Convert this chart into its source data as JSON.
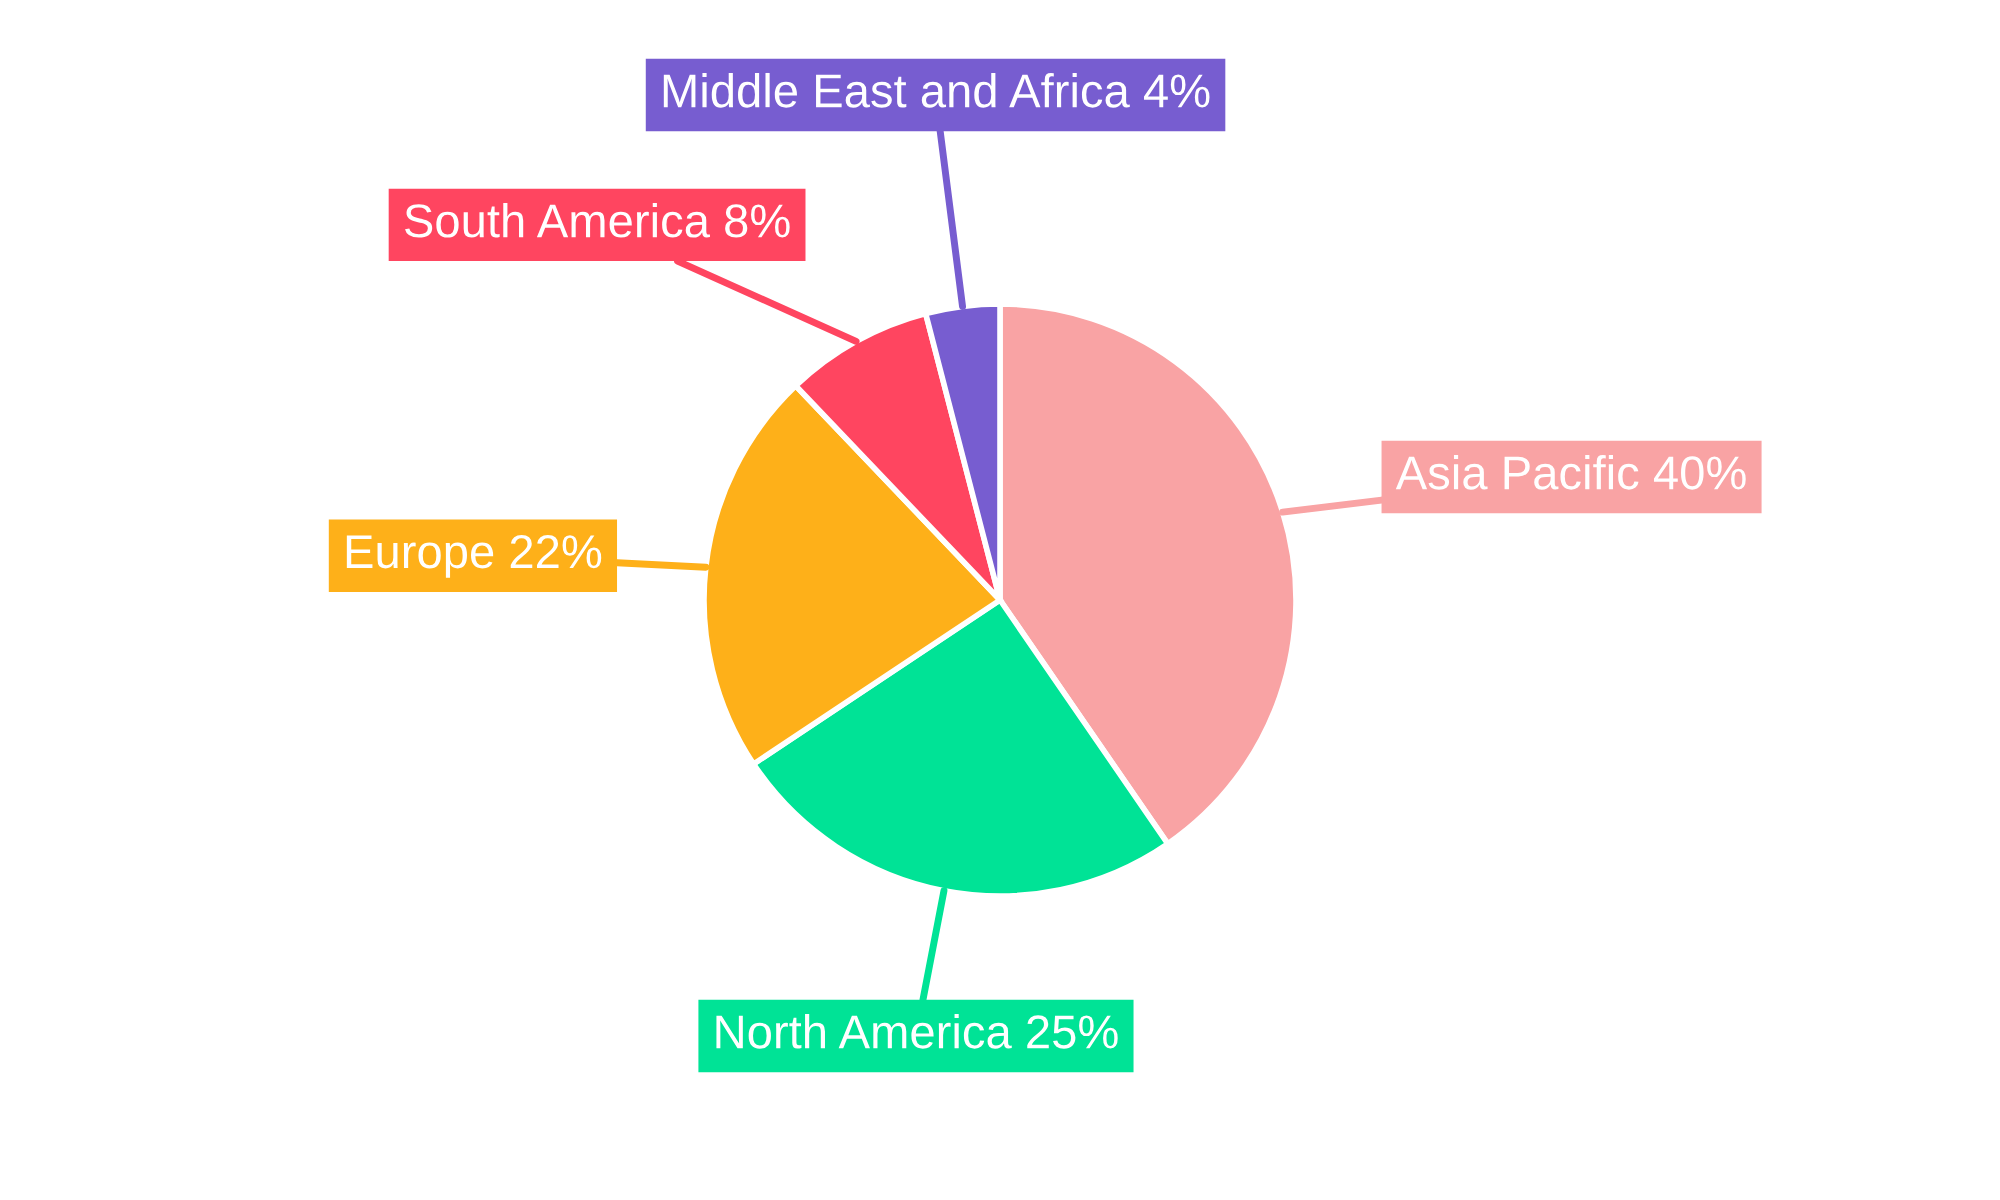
{
  "chart_data": {
    "type": "pie",
    "categories": [
      "Asia Pacific",
      "North America",
      "Europe",
      "South America",
      "Middle East and Africa"
    ],
    "values": [
      40,
      25,
      22,
      8,
      4
    ],
    "value_labels": [
      "40%",
      "25%",
      "22%",
      "8%",
      "4%"
    ],
    "colors": [
      "#f9a3a4",
      "#00e396",
      "#feb019",
      "#ff4560",
      "#775dd0"
    ],
    "legend": false
  }
}
